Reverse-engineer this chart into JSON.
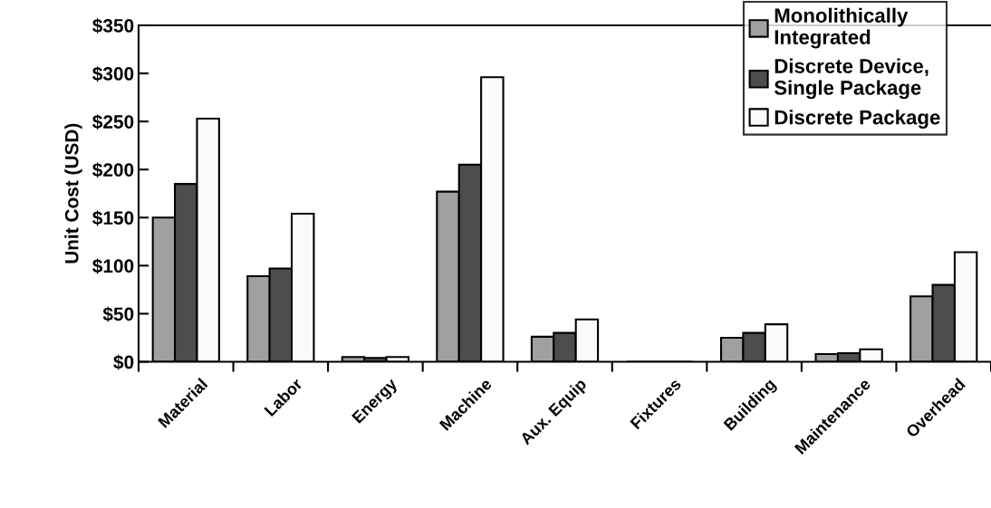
{
  "chart_data": {
    "type": "bar",
    "ylabel": "Unit Cost (USD)",
    "categories": [
      "Material",
      "Labor",
      "Energy",
      "Machine",
      "Aux. Equip",
      "Fixtures",
      "Building",
      "Maintenance",
      "Overhead"
    ],
    "series": [
      {
        "name": "Monolithically\nIntegrated",
        "color": "#a0a0a0",
        "values": [
          150,
          89,
          5,
          177,
          26,
          0,
          25,
          8,
          68
        ]
      },
      {
        "name": "Discrete Device,\nSingle Package",
        "color": "#4d4d4d",
        "values": [
          185,
          97,
          4,
          205,
          30,
          0,
          30,
          9,
          80
        ]
      },
      {
        "name": "Discrete Package",
        "color": "#fafafa",
        "values": [
          253,
          154,
          5,
          296,
          44,
          0,
          39,
          13,
          114
        ]
      }
    ],
    "ylim": [
      0,
      350
    ],
    "yticks": [
      {
        "value": 0,
        "label": "$0"
      },
      {
        "value": 50,
        "label": "$50"
      },
      {
        "value": 100,
        "label": "$100"
      },
      {
        "value": 150,
        "label": "$150"
      },
      {
        "value": 200,
        "label": "$200"
      },
      {
        "value": 250,
        "label": "$250"
      },
      {
        "value": 300,
        "label": "$300"
      },
      {
        "value": 350,
        "label": "$350"
      }
    ],
    "grid": false,
    "legend": "top right"
  }
}
